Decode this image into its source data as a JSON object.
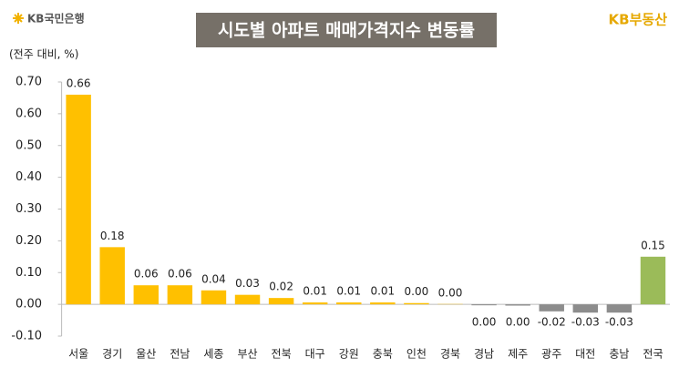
{
  "header": {
    "logo": "KB국민은행",
    "brand": "KB부동산"
  },
  "chart_data": {
    "type": "bar",
    "title": "시도별 아파트 매매가격지수 변동률",
    "y_label": "(전주 대비, %)",
    "categories": [
      "서울",
      "경기",
      "울산",
      "전남",
      "세종",
      "부산",
      "전북",
      "대구",
      "강원",
      "충북",
      "인천",
      "경북",
      "경남",
      "제주",
      "광주",
      "대전",
      "충남",
      "전국"
    ],
    "values": [
      0.66,
      0.18,
      0.06,
      0.06,
      0.044,
      0.03,
      0.02,
      0.006,
      0.006,
      0.006,
      0.004,
      0.001,
      -0.003,
      -0.004,
      -0.022,
      -0.026,
      -0.026,
      0.15
    ],
    "value_labels": [
      "0.66",
      "0.18",
      "0.06",
      "0.06",
      "0.04",
      "0.03",
      "0.02",
      "0.01",
      "0.01",
      "0.01",
      "0.00",
      "0.00",
      "0.00",
      "0.00",
      "-0.02",
      "-0.03",
      "-0.03",
      "0.15"
    ],
    "colors": [
      "#ffc000",
      "#ffc000",
      "#ffc000",
      "#ffc000",
      "#ffc000",
      "#ffc000",
      "#ffc000",
      "#ffc000",
      "#ffc000",
      "#ffc000",
      "#ffc000",
      "#ffc000",
      "#8c8c8c",
      "#8c8c8c",
      "#8c8c8c",
      "#8c8c8c",
      "#8c8c8c",
      "#9bbb59"
    ],
    "ylim": [
      -0.1,
      0.7
    ],
    "yticks": [
      {
        "value": -0.1,
        "label": "-0.10"
      },
      {
        "value": 0,
        "label": "0.00"
      },
      {
        "value": 0.1,
        "label": "0.10"
      },
      {
        "value": 0.2,
        "label": "0.20"
      },
      {
        "value": 0.3,
        "label": "0.30"
      },
      {
        "value": 0.4,
        "label": "0.40"
      },
      {
        "value": 0.5,
        "label": "0.50"
      },
      {
        "value": 0.6,
        "label": "0.60"
      },
      {
        "value": 0.7,
        "label": "0.70"
      }
    ]
  }
}
